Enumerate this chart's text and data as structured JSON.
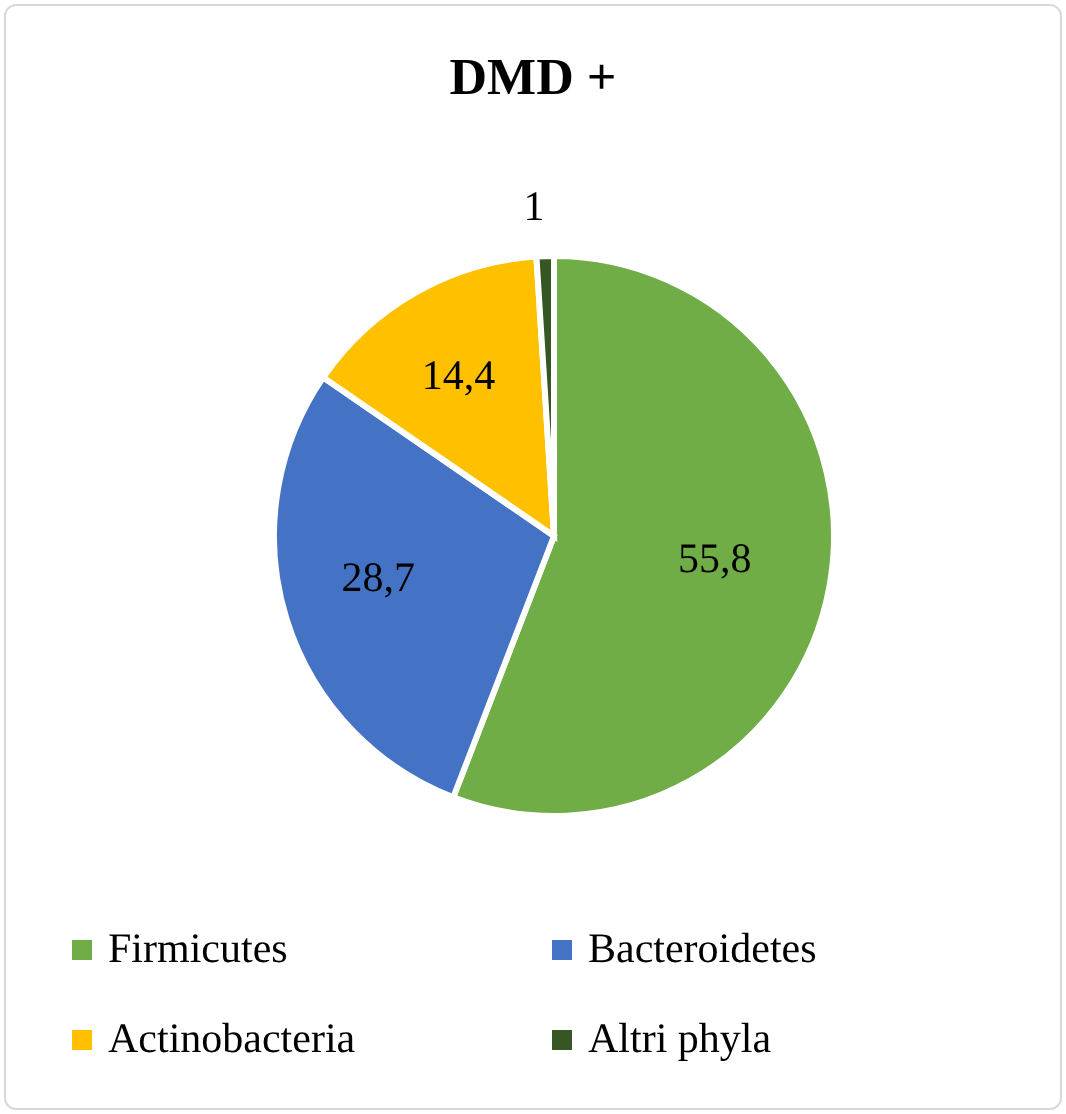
{
  "chart_data": {
    "type": "pie",
    "title": "DMD +",
    "categories": [
      "Firmicutes",
      "Bacteroidetes",
      "Actinobacteria",
      "Altri phyla"
    ],
    "values": [
      55.8,
      28.7,
      14.4,
      1
    ],
    "value_labels": [
      "55,8",
      "28,7",
      "14,4",
      "1"
    ],
    "colors": [
      "#70ad47",
      "#4472c4",
      "#ffc000",
      "#375623"
    ],
    "legend": "bottom"
  }
}
